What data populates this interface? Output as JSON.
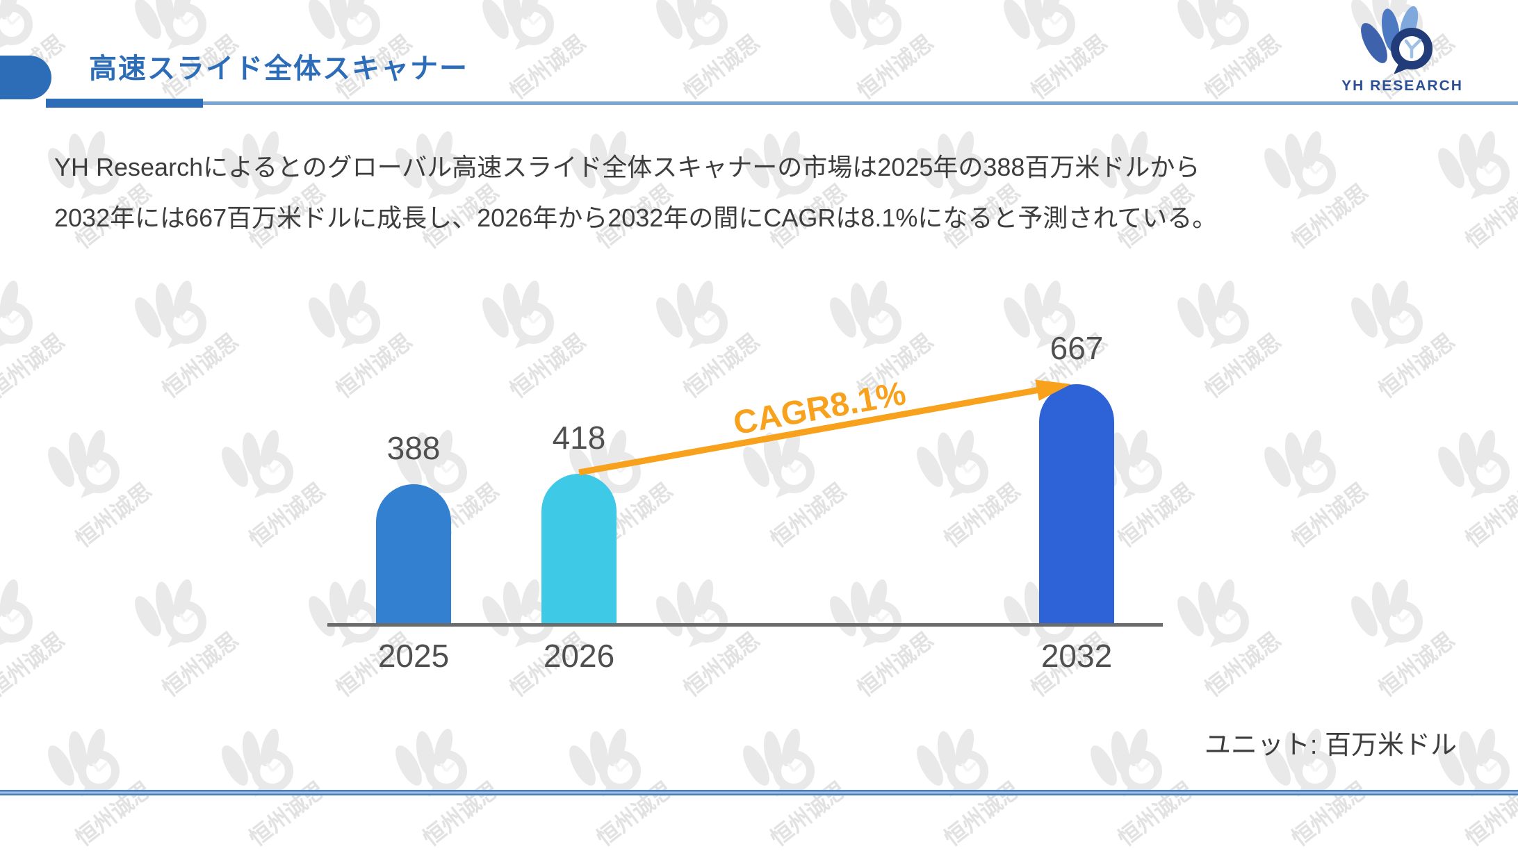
{
  "header": {
    "title": "高速スライド全体スキャナー",
    "logo_text": "YH RESEARCH"
  },
  "summary": {
    "line1": "YH Researchによるとのグローバル高速スライド全体スキャナーの市場は2025年の388百万米ドルから",
    "line2": "2032年には667百万米ドルに成長し、2026年から2032年の間にCAGRは8.1%になると予測されている。"
  },
  "chart_data": {
    "type": "bar",
    "title": "",
    "xlabel": "",
    "ylabel": "",
    "categories": [
      "2025",
      "2026",
      "2032"
    ],
    "values": [
      388,
      418,
      667
    ],
    "bar_colors": [
      "#337fd0",
      "#3ec9e6",
      "#2e63d8"
    ],
    "ylim": [
      0,
      700
    ],
    "grid": false,
    "legend": "none",
    "unit_label": "ユニット: 百万米ドル",
    "annotation": {
      "text": "CAGR8.1%",
      "color": "#f7a11c",
      "from_category": "2026",
      "to_category": "2032"
    }
  },
  "watermark_text": "恒州诚思",
  "colors": {
    "title_blue": "#2d6db7",
    "thin_line_blue": "#79a5d4",
    "divider_blue": "#4a7dbd",
    "axis_gray": "#6b6b6b",
    "label_gray": "#4f4f4f",
    "body_text": "#3d3d3d",
    "watermark_gray": "#e9e9e9"
  }
}
